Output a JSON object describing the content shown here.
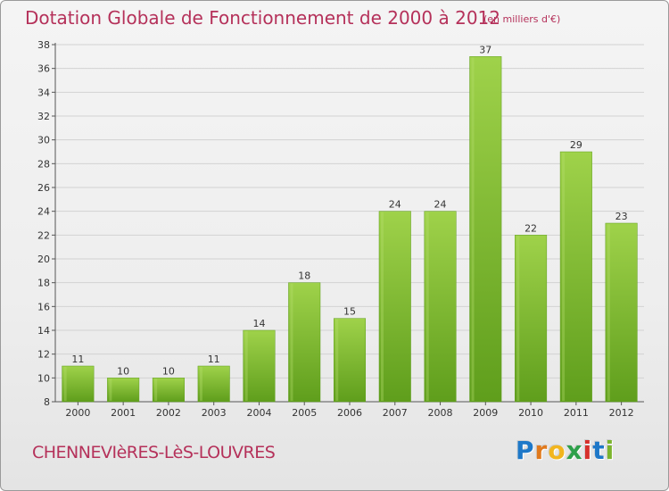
{
  "header": {
    "title": "Dotation Globale de Fonctionnement de 2000 à 2012",
    "subtitle": "(en milliers d'€)"
  },
  "footer": {
    "place": "CHENNEVIèRES-LèS-LOUVRES",
    "logo_letters": [
      "P",
      "r",
      "o",
      "x",
      "i",
      "t",
      "i"
    ],
    "logo_colors": [
      "#1e78c8",
      "#e07a1e",
      "#f2b51e",
      "#2ea04a",
      "#d6312c",
      "#1e78c8",
      "#7bb42c"
    ]
  },
  "chart_data": {
    "type": "bar",
    "title": "Dotation Globale de Fonctionnement de 2000 à 2012",
    "categories": [
      "2000",
      "2001",
      "2002",
      "2003",
      "2004",
      "2005",
      "2006",
      "2007",
      "2008",
      "2009",
      "2010",
      "2011",
      "2012"
    ],
    "values": [
      11,
      10,
      10,
      11,
      14,
      18,
      15,
      24,
      24,
      37,
      22,
      29,
      23
    ],
    "value_labels": [
      "11",
      "10",
      "10",
      "11",
      "14",
      "18",
      "15",
      "24",
      "24",
      "37",
      "22",
      "29",
      "23"
    ],
    "ylim": [
      8,
      38
    ],
    "yticks": [
      "8",
      "10",
      "12",
      "14",
      "16",
      "18",
      "20",
      "22",
      "24",
      "26",
      "28",
      "30",
      "32",
      "34",
      "36",
      "38"
    ],
    "grid": true,
    "bar_color": "#7fbd32",
    "bar_color_light": "#9fd24a",
    "bar_color_dark": "#5f9e1c"
  }
}
